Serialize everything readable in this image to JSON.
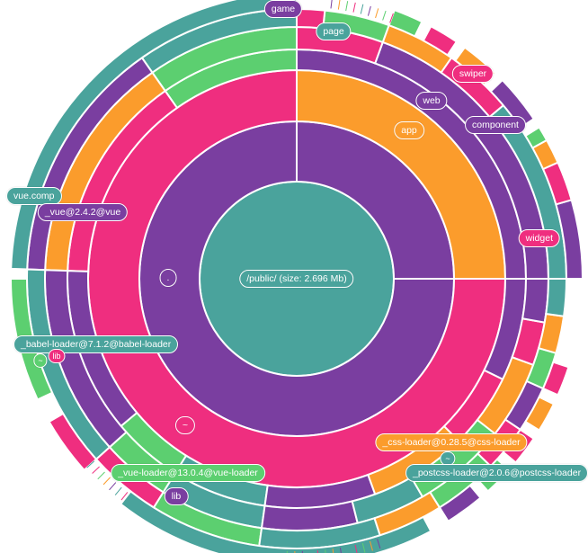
{
  "chart_data": {
    "type": "sunburst",
    "root_label": "/public/ (size: 2.696 Mb)",
    "palette": {
      "teal": "#4aa39c",
      "purple": "#7a3ea0",
      "pink": "#ef2e7f",
      "orange": "#fb9c2c",
      "green": "#5ccf70"
    },
    "labels": [
      {
        "id": "root",
        "text": "/public/ (size: 2.696 Mb)",
        "color": "teal"
      },
      {
        "id": "dot",
        "text": ".",
        "color": "purple"
      },
      {
        "id": "app",
        "text": "app",
        "color": "orange"
      },
      {
        "id": "tilde",
        "text": "~",
        "color": "pink"
      },
      {
        "id": "web",
        "text": "web",
        "color": "purple"
      },
      {
        "id": "component",
        "text": "component",
        "color": "purple"
      },
      {
        "id": "swiper",
        "text": "swiper",
        "color": "pink"
      },
      {
        "id": "widget",
        "text": "widget",
        "color": "pink"
      },
      {
        "id": "page",
        "text": "page",
        "color": "teal"
      },
      {
        "id": "game",
        "text": "game",
        "color": "purple"
      },
      {
        "id": "vue-comp",
        "text": "vue.comp",
        "color": "teal"
      },
      {
        "id": "vue-pkg",
        "text": "_vue@2.4.2@vue",
        "color": "purple"
      },
      {
        "id": "babel",
        "text": "_babel-loader@7.1.2@babel-loader",
        "color": "teal"
      },
      {
        "id": "tilde-small",
        "text": "~",
        "color": "green"
      },
      {
        "id": "lib-small",
        "text": "lib",
        "color": "pink"
      },
      {
        "id": "vue-loader",
        "text": "_vue-loader@13.0.4@vue-loader",
        "color": "green"
      },
      {
        "id": "lib",
        "text": "lib",
        "color": "purple"
      },
      {
        "id": "css-loader",
        "text": "_css-loader@0.28.5@css-loader",
        "color": "orange"
      },
      {
        "id": "tilde-teal",
        "text": "~",
        "color": "teal"
      },
      {
        "id": "postcss",
        "text": "_postcss-loader@2.0.6@postcss-loader",
        "color": "teal"
      }
    ],
    "rings": [
      {
        "level": 1,
        "segments": [
          {
            "color": "purple",
            "start": 0,
            "end": 90
          },
          {
            "color": "purple",
            "start": 90,
            "end": 360
          }
        ]
      },
      {
        "level": 2,
        "segments": [
          {
            "color": "orange",
            "start": 0,
            "end": 90
          },
          {
            "color": "pink",
            "start": 90,
            "end": 360
          }
        ]
      },
      {
        "level": 3,
        "segments": [
          {
            "color": "purple",
            "start": 0,
            "end": 90
          },
          {
            "color": "green",
            "start": 90,
            "end": 125
          },
          {
            "color": "pink",
            "start": 125,
            "end": 178
          },
          {
            "color": "purple",
            "start": 178,
            "end": 220
          },
          {
            "color": "green",
            "start": 220,
            "end": 238
          },
          {
            "color": "teal",
            "start": 238,
            "end": 262
          },
          {
            "color": "purple",
            "start": 262,
            "end": 290
          },
          {
            "color": "orange",
            "start": 290,
            "end": 315
          },
          {
            "color": "pink",
            "start": 315,
            "end": 334
          },
          {
            "color": "purple",
            "start": 334,
            "end": 360
          }
        ]
      },
      {
        "level": 4,
        "segments": [
          {
            "color": "purple",
            "start": 0,
            "end": 70
          },
          {
            "color": "pink",
            "start": 70,
            "end": 90
          },
          {
            "color": "green",
            "start": 90,
            "end": 125
          },
          {
            "color": "orange",
            "start": 125,
            "end": 178
          },
          {
            "color": "purple",
            "start": 178,
            "end": 222
          },
          {
            "color": "green",
            "start": 222,
            "end": 238
          },
          {
            "color": "teal",
            "start": 238,
            "end": 262
          },
          {
            "color": "purple",
            "start": 262,
            "end": 284
          },
          {
            "color": "teal",
            "start": 284,
            "end": 300
          },
          {
            "color": "green",
            "start": 300,
            "end": 322
          },
          {
            "color": "orange",
            "start": 322,
            "end": 340
          },
          {
            "color": "pink",
            "start": 340,
            "end": 350
          },
          {
            "color": "purple",
            "start": 350,
            "end": 360
          }
        ]
      },
      {
        "level": 5,
        "segments": [
          {
            "color": "teal",
            "start": 0,
            "end": 40
          },
          {
            "color": "pink",
            "start": 40,
            "end": 55
          },
          {
            "color": "orange",
            "start": 55,
            "end": 70
          },
          {
            "color": "green",
            "start": 70,
            "end": 84
          },
          {
            "color": "pink",
            "start": 84,
            "end": 90
          },
          {
            "color": "teal",
            "start": 90,
            "end": 125
          },
          {
            "color": "purple",
            "start": 125,
            "end": 178
          },
          {
            "color": "teal",
            "start": 178,
            "end": 222
          },
          {
            "color": "pink",
            "start": 222,
            "end": 238
          },
          {
            "color": "green",
            "start": 238,
            "end": 262
          },
          {
            "color": "teal",
            "start": 262,
            "end": 288
          },
          {
            "color": "orange",
            "start": 288,
            "end": 302
          },
          {
            "color": "green",
            "start": 302,
            "end": 316
          },
          {
            "color": "pink",
            "start": 316,
            "end": 326
          },
          {
            "color": "purple",
            "start": 326,
            "end": 336
          },
          {
            "color": "green",
            "start": 336,
            "end": 344
          },
          {
            "color": "orange",
            "start": 344,
            "end": 352
          },
          {
            "color": "teal",
            "start": 352,
            "end": 360
          }
        ]
      },
      {
        "level": 6,
        "segments": [
          {
            "color": "purple",
            "start": 0,
            "end": 16
          },
          {
            "color": "pink",
            "start": 16,
            "end": 24
          },
          {
            "color": "orange",
            "start": 24,
            "end": 29
          },
          {
            "color": "green",
            "start": 29,
            "end": 32
          },
          {
            "color": "purple",
            "start": 34,
            "end": 44
          },
          {
            "color": "orange",
            "start": 46,
            "end": 54
          },
          {
            "color": "pink",
            "start": 56,
            "end": 62
          },
          {
            "color": "green",
            "start": 64,
            "end": 70
          },
          {
            "color": "teal",
            "start": 90,
            "end": 178
          },
          {
            "color": "green",
            "start": 180,
            "end": 205
          },
          {
            "color": "pink",
            "start": 210,
            "end": 222
          },
          {
            "color": "teal",
            "start": 232,
            "end": 298
          },
          {
            "color": "purple",
            "start": 302,
            "end": 310
          },
          {
            "color": "green",
            "start": 312,
            "end": 318
          },
          {
            "color": "pink",
            "start": 320,
            "end": 326
          },
          {
            "color": "orange",
            "start": 328,
            "end": 334
          },
          {
            "color": "pink",
            "start": 336,
            "end": 342
          }
        ]
      }
    ]
  }
}
